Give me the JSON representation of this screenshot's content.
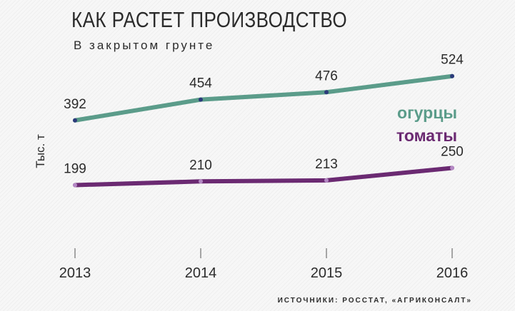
{
  "title": "КАК РАСТЕТ ПРОИЗВОДСТВО",
  "subtitle": "В закрытом грунте",
  "source": "ИСТОЧНИКИ: РОССТАТ, «АГРИКОНСАЛТ»",
  "chart_data": {
    "type": "line",
    "title": "КАК РАСТЕТ ПРОИЗВОДСТВО",
    "subtitle": "В закрытом грунте",
    "ylabel": "Тыс. т",
    "xlabel": "",
    "categories": [
      "2013",
      "2014",
      "2015",
      "2016"
    ],
    "series": [
      {
        "name": "огурцы",
        "values": [
          392,
          454,
          476,
          524
        ],
        "color": "#5b9c8a",
        "marker_color": "#2b3a7a"
      },
      {
        "name": "томаты",
        "values": [
          199,
          210,
          213,
          250
        ],
        "color": "#6b2a72",
        "marker_color": "#b488c4"
      }
    ],
    "ylim": [
      0,
      700
    ],
    "grid": false,
    "legend": "right, inline labels"
  }
}
